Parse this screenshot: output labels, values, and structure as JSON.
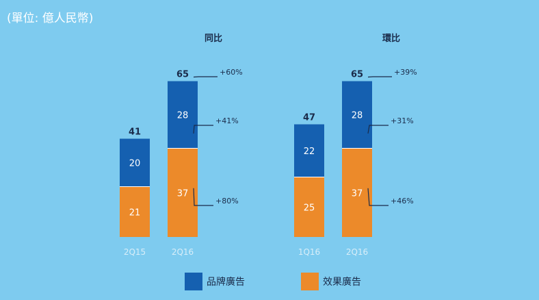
{
  "unit_note": "(單位: 億人民幣)",
  "colors": {
    "background": "#7ecbef",
    "brand": "#1560b0",
    "performance": "#ec8a2a",
    "text_dark": "#1a2b4a",
    "label_light": "#d8eef9"
  },
  "chart_data": [
    {
      "type": "bar",
      "stacked": true,
      "title": "同比",
      "categories": [
        "2Q15",
        "2Q16"
      ],
      "series": [
        {
          "name": "效果廣告",
          "values": [
            21,
            37
          ]
        },
        {
          "name": "品牌廣告",
          "values": [
            20,
            28
          ]
        }
      ],
      "totals": [
        41,
        65
      ],
      "annotations": [
        "+60%",
        "+41%",
        "+80%"
      ]
    },
    {
      "type": "bar",
      "stacked": true,
      "title": "環比",
      "categories": [
        "1Q16",
        "2Q16"
      ],
      "series": [
        {
          "name": "效果廣告",
          "values": [
            25,
            37
          ]
        },
        {
          "name": "品牌廣告",
          "values": [
            22,
            28
          ]
        }
      ],
      "totals": [
        47,
        65
      ],
      "annotations": [
        "+39%",
        "+31%",
        "+46%"
      ]
    }
  ],
  "legend": [
    {
      "label": "品牌廣告",
      "color": "#1560b0"
    },
    {
      "label": "效果廣告",
      "color": "#ec8a2a"
    }
  ]
}
